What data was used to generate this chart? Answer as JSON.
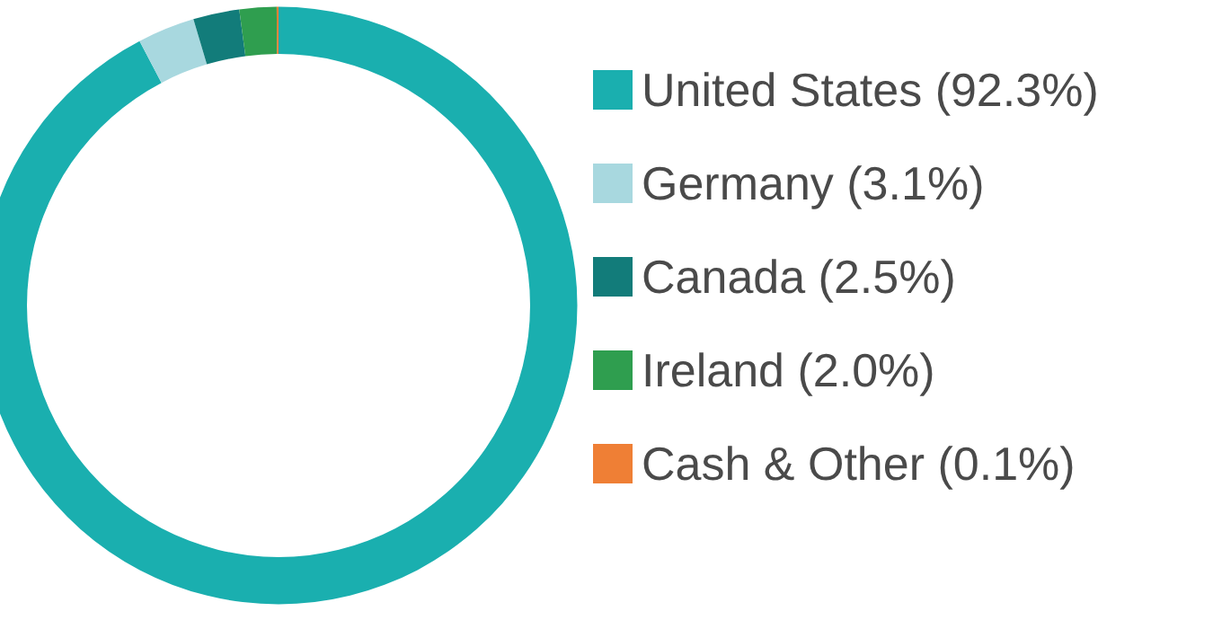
{
  "chart_data": {
    "type": "donut",
    "categories": [
      "United States (92.3%)",
      "Germany (3.1%)",
      "Canada (2.5%)",
      "Ireland (2.0%)",
      "Cash & Other (0.1%)"
    ],
    "values": [
      92.3,
      3.1,
      2.5,
      2.0,
      0.1
    ],
    "colors": [
      "#1aafaf",
      "#a8d8df",
      "#127c7a",
      "#2f9e4f",
      "#ef7f35"
    ],
    "legend": "right"
  }
}
